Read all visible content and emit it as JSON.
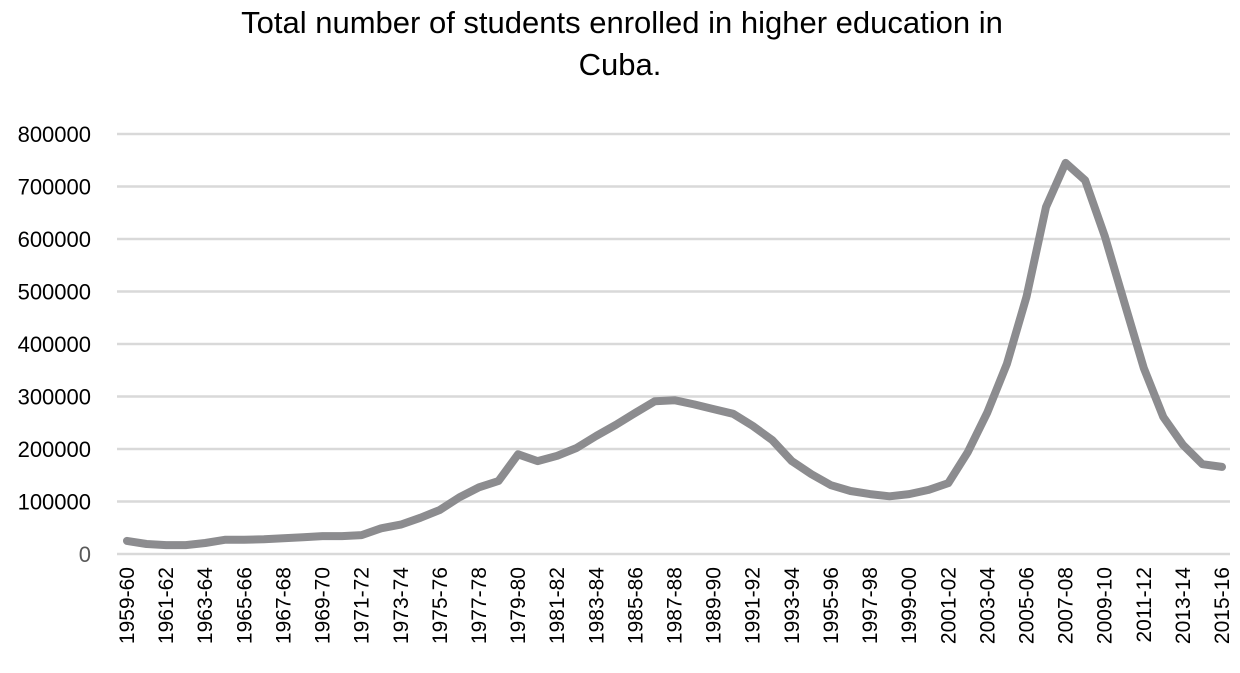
{
  "chart_data": {
    "type": "line",
    "title": "Total number of students enrolled in higher education in Cuba.",
    "title_lines": [
      "Total number of students enrolled in higher education in",
      "Cuba."
    ],
    "xlabel": "",
    "ylabel": "",
    "ylim": [
      0,
      800000
    ],
    "yticks": [
      0,
      100000,
      200000,
      300000,
      400000,
      500000,
      600000,
      700000,
      800000
    ],
    "grid": true,
    "legend": "none",
    "line_color": "#8c8c8f",
    "grid_color": "#d9d9d9",
    "x_tick_labels": [
      "1959-60",
      "1961-62",
      "1963-64",
      "1965-66",
      "1967-68",
      "1969-70",
      "1971-72",
      "1973-74",
      "1975-76",
      "1977-78",
      "1979-80",
      "1981-82",
      "1983-84",
      "1985-86",
      "1987-88",
      "1989-90",
      "1991-92",
      "1993-94",
      "1995-96",
      "1997-98",
      "1999-00",
      "2001-02",
      "2003-04",
      "2005-06",
      "2007-08",
      "2009-10",
      "2011-12",
      "2013-14",
      "2015-16"
    ],
    "categories": [
      "1959-60",
      "1960-61",
      "1961-62",
      "1962-63",
      "1963-64",
      "1964-65",
      "1965-66",
      "1966-67",
      "1967-68",
      "1968-69",
      "1969-70",
      "1970-71",
      "1971-72",
      "1972-73",
      "1973-74",
      "1974-75",
      "1975-76",
      "1976-77",
      "1977-78",
      "1978-79",
      "1979-80",
      "1980-81",
      "1981-82",
      "1982-83",
      "1983-84",
      "1984-85",
      "1985-86",
      "1986-87",
      "1987-88",
      "1988-89",
      "1989-90",
      "1990-91",
      "1991-92",
      "1992-93",
      "1993-94",
      "1994-95",
      "1995-96",
      "1996-97",
      "1997-98",
      "1998-99",
      "1999-00",
      "2000-01",
      "2001-02",
      "2002-03",
      "2003-04",
      "2004-05",
      "2005-06",
      "2006-07",
      "2007-08",
      "2008-09",
      "2009-10",
      "2010-11",
      "2011-12",
      "2012-13",
      "2013-14",
      "2014-15",
      "2015-16"
    ],
    "series": [
      {
        "name": "Students enrolled",
        "values": [
          25000,
          19000,
          17000,
          17000,
          21000,
          27000,
          27000,
          28000,
          30000,
          32000,
          34000,
          34000,
          36000,
          49000,
          56000,
          69000,
          84000,
          108000,
          127000,
          139000,
          190000,
          177000,
          187000,
          202000,
          225000,
          246000,
          269000,
          291000,
          293000,
          285000,
          276000,
          267000,
          244000,
          217000,
          177000,
          152000,
          131000,
          120000,
          114000,
          110000,
          114000,
          122000,
          135000,
          194000,
          270000,
          362000,
          490000,
          661000,
          745000,
          712000,
          606000,
          480000,
          354000,
          261000,
          208000,
          171000,
          166000
        ]
      }
    ]
  },
  "axis": {
    "y_labels": [
      "800000",
      "700000",
      "600000",
      "500000",
      "400000",
      "300000",
      "200000",
      "100000",
      "0"
    ]
  }
}
